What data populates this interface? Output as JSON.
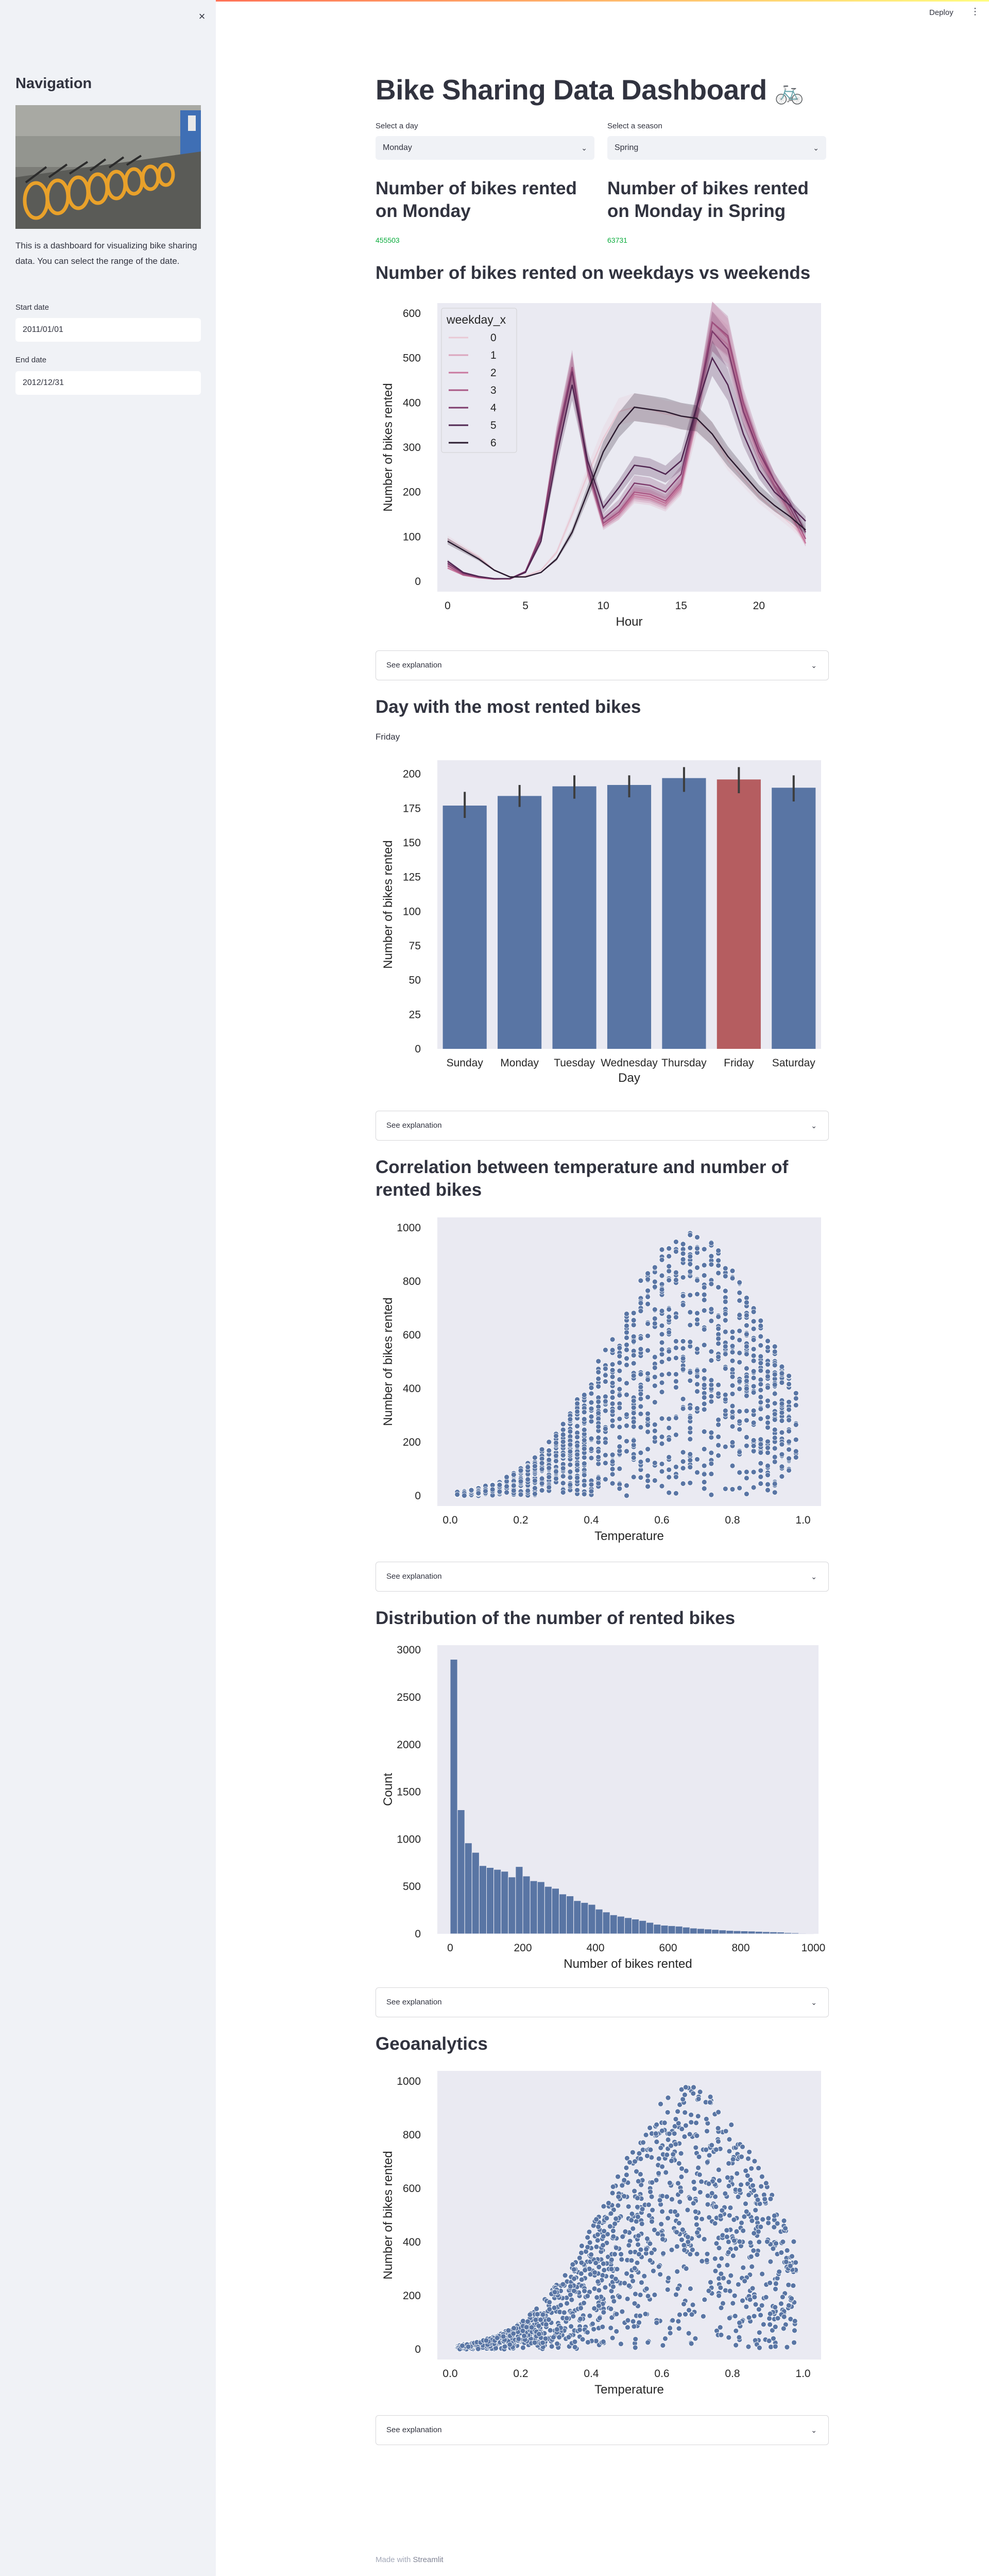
{
  "header": {
    "deploy_label": "Deploy",
    "menu_icon": "vertical-dots-icon"
  },
  "sidebar": {
    "title": "Navigation",
    "close_icon": "close-icon",
    "description": "This is a dashboard for visualizing bike sharing data. You can select the range of the date.",
    "start_date_label": "Start date",
    "start_date_value": "2011/01/01",
    "end_date_label": "End date",
    "end_date_value": "2012/12/31"
  },
  "main": {
    "title": "Bike Sharing Data Dashboard",
    "title_emoji": "🚲",
    "day_select": {
      "label": "Select a day",
      "value": "Monday"
    },
    "season_select": {
      "label": "Select a season",
      "value": "Spring"
    },
    "metric_day": {
      "title": "Number of bikes rented on Monday",
      "value": "455503"
    },
    "metric_season": {
      "title": "Number of bikes rented on Monday in Spring",
      "value": "63731"
    },
    "sections": {
      "weekday": {
        "title": "Number of bikes rented on weekdays vs weekends",
        "expander": "See explanation"
      },
      "most_day": {
        "title": "Day with the most rented bikes",
        "subtitle": "Friday",
        "expander": "See explanation"
      },
      "temp": {
        "title": "Correlation between temperature and number of rented bikes",
        "expander": "See explanation"
      },
      "dist": {
        "title": "Distribution of the number of rented bikes",
        "expander": "See explanation"
      },
      "geo": {
        "title": "Geoanalytics",
        "expander": "See explanation"
      }
    }
  },
  "footer": {
    "prefix": "Made with",
    "brand": "Streamlit"
  },
  "colors": {
    "accent_red": "#ff4b4b",
    "plot_bg": "#eaeaf2",
    "bar_blue": "#5975a4",
    "bar_red": "#b55d60",
    "metric_green": "#09ab3b"
  },
  "chart_data": [
    {
      "type": "line",
      "xlabel": "Hour",
      "ylabel": "Number of bikes rented",
      "xlim": [
        0,
        23
      ],
      "ylim": [
        0,
        600
      ],
      "x_ticks": [
        "0",
        "5",
        "10",
        "15",
        "20"
      ],
      "y_ticks": [
        "0",
        "100",
        "200",
        "300",
        "400",
        "500",
        "600"
      ],
      "legend": {
        "title": "weekday_x",
        "placement": "top-left"
      },
      "x": [
        0,
        1,
        2,
        3,
        4,
        5,
        6,
        7,
        8,
        9,
        10,
        11,
        12,
        13,
        14,
        15,
        16,
        17,
        18,
        19,
        20,
        21,
        22,
        23
      ],
      "series": [
        {
          "name": "0",
          "color": "#e9c9d5",
          "values": [
            95,
            75,
            55,
            25,
            10,
            12,
            25,
            65,
            150,
            240,
            320,
            380,
            390,
            385,
            375,
            370,
            360,
            330,
            270,
            230,
            190,
            160,
            130,
            95
          ]
        },
        {
          "name": "1",
          "color": "#dba5bd",
          "values": [
            40,
            18,
            10,
            6,
            5,
            20,
            95,
            300,
            460,
            260,
            130,
            150,
            190,
            185,
            170,
            210,
            360,
            560,
            530,
            380,
            280,
            210,
            150,
            85
          ]
        },
        {
          "name": "2",
          "color": "#c9789e",
          "values": [
            30,
            14,
            8,
            5,
            6,
            22,
            105,
            320,
            475,
            250,
            125,
            150,
            195,
            190,
            175,
            215,
            380,
            580,
            545,
            390,
            290,
            215,
            155,
            85
          ]
        },
        {
          "name": "3",
          "color": "#a95784",
          "values": [
            35,
            15,
            9,
            5,
            6,
            22,
            105,
            320,
            480,
            255,
            130,
            155,
            200,
            195,
            180,
            220,
            390,
            580,
            550,
            400,
            300,
            225,
            165,
            95
          ]
        },
        {
          "name": "4",
          "color": "#7d3a6b",
          "values": [
            40,
            18,
            10,
            6,
            6,
            22,
            100,
            310,
            470,
            255,
            140,
            170,
            220,
            215,
            200,
            240,
            390,
            560,
            520,
            380,
            290,
            225,
            175,
            110
          ]
        },
        {
          "name": "5",
          "color": "#4f2550",
          "values": [
            45,
            20,
            11,
            6,
            6,
            20,
            90,
            280,
            440,
            270,
            165,
            210,
            260,
            255,
            240,
            270,
            390,
            500,
            440,
            330,
            250,
            200,
            170,
            135
          ]
        },
        {
          "name": "6",
          "color": "#2a1a2e",
          "values": [
            90,
            70,
            50,
            25,
            10,
            10,
            20,
            50,
            110,
            200,
            290,
            350,
            390,
            385,
            380,
            370,
            365,
            330,
            280,
            240,
            200,
            170,
            145,
            115
          ]
        }
      ]
    },
    {
      "type": "bar",
      "xlabel": "Day",
      "ylabel": "Number of bikes rented",
      "ylim": [
        0,
        210
      ],
      "y_ticks": [
        "0",
        "25",
        "50",
        "75",
        "100",
        "125",
        "150",
        "175",
        "200"
      ],
      "categories": [
        "Sunday",
        "Monday",
        "Tuesday",
        "Wednesday",
        "Thursday",
        "Friday",
        "Saturday"
      ],
      "values": [
        177,
        184,
        191,
        192,
        197,
        196,
        190
      ],
      "error_low": [
        168,
        176,
        182,
        183,
        187,
        186,
        180
      ],
      "error_high": [
        187,
        192,
        199,
        199,
        205,
        205,
        199
      ],
      "highlight": "Friday"
    },
    {
      "type": "scatter",
      "xlabel": "Temperature",
      "ylabel": "Number of bikes rented",
      "xlim": [
        0,
        1
      ],
      "ylim": [
        0,
        1000
      ],
      "x_ticks": [
        "0.0",
        "0.2",
        "0.4",
        "0.6",
        "0.8",
        "1.0"
      ],
      "y_ticks": [
        "0",
        "200",
        "400",
        "600",
        "800",
        "1000"
      ],
      "style": "columns"
    },
    {
      "type": "bar",
      "xlabel": "Number of bikes rented",
      "ylabel": "Count",
      "xlim": [
        0,
        1000
      ],
      "ylim": [
        0,
        3000
      ],
      "x_ticks": [
        "0",
        "200",
        "400",
        "600",
        "800",
        "1000"
      ],
      "y_ticks": [
        "0",
        "500",
        "1000",
        "1500",
        "2000",
        "2500",
        "3000"
      ],
      "bin_width": 20,
      "values": [
        2900,
        1310,
        960,
        860,
        720,
        700,
        680,
        660,
        600,
        710,
        610,
        560,
        550,
        500,
        480,
        420,
        400,
        350,
        330,
        310,
        260,
        230,
        200,
        185,
        170,
        155,
        140,
        120,
        100,
        90,
        85,
        80,
        70,
        60,
        55,
        50,
        45,
        40,
        35,
        32,
        30,
        28,
        25,
        22,
        20,
        18,
        12,
        10,
        6,
        4
      ]
    },
    {
      "type": "scatter",
      "xlabel": "Temperature",
      "ylabel": "Number of bikes rented",
      "xlim": [
        0,
        1
      ],
      "ylim": [
        0,
        1000
      ],
      "x_ticks": [
        "0.0",
        "0.2",
        "0.4",
        "0.6",
        "0.8",
        "1.0"
      ],
      "y_ticks": [
        "0",
        "200",
        "400",
        "600",
        "800",
        "1000"
      ],
      "style": "cloud"
    }
  ]
}
